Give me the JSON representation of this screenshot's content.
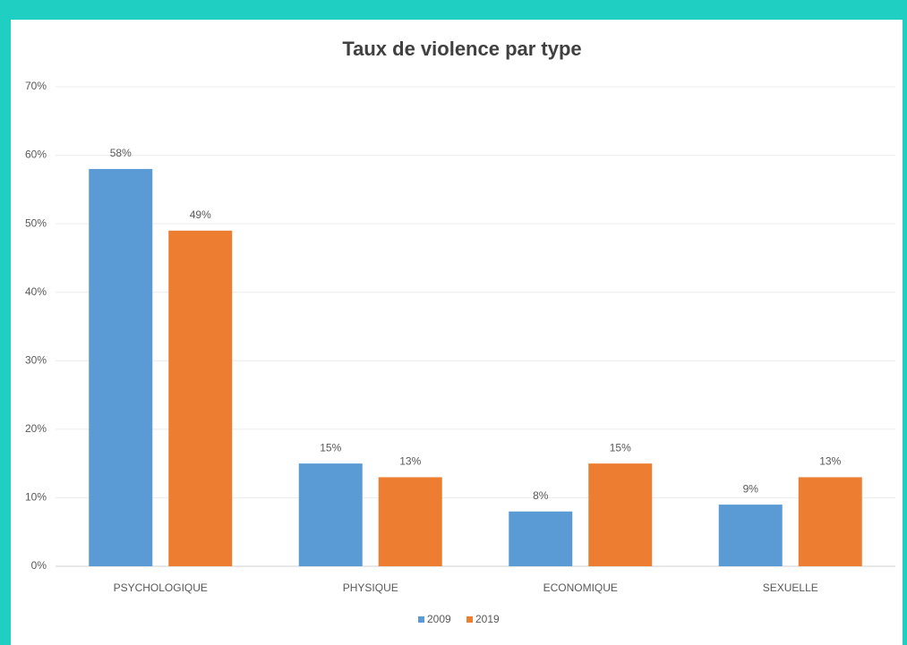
{
  "chart_data": {
    "type": "bar",
    "title": "Taux de violence par type",
    "categories": [
      "PSYCHOLOGIQUE",
      "PHYSIQUE",
      "ECONOMIQUE",
      "SEXUELLE"
    ],
    "series": [
      {
        "name": "2009",
        "color": "#5b9bd5",
        "values": [
          58,
          15,
          8,
          9
        ],
        "value_labels": [
          "58%",
          "15%",
          "8%",
          "9%"
        ]
      },
      {
        "name": "2019",
        "color": "#ed7d31",
        "values": [
          49,
          13,
          15,
          13
        ],
        "value_labels": [
          "49%",
          "13%",
          "15%",
          "13%"
        ]
      }
    ],
    "ylim": [
      0,
      70
    ],
    "yticks": [
      {
        "value": 0,
        "label": "0%"
      },
      {
        "value": 10,
        "label": "10%"
      },
      {
        "value": 20,
        "label": "20%"
      },
      {
        "value": 30,
        "label": "30%"
      },
      {
        "value": 40,
        "label": "40%"
      },
      {
        "value": 50,
        "label": "50%"
      },
      {
        "value": 60,
        "label": "60%"
      },
      {
        "value": 70,
        "label": "70%"
      }
    ],
    "grid": true,
    "legend": "bottom"
  }
}
